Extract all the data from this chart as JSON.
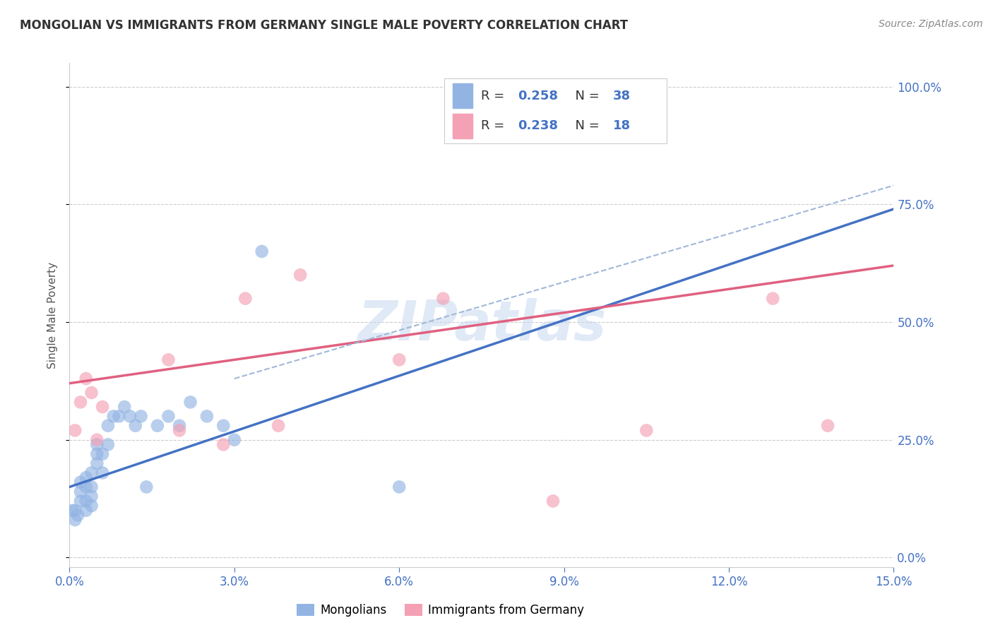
{
  "title": "MONGOLIAN VS IMMIGRANTS FROM GERMANY SINGLE MALE POVERTY CORRELATION CHART",
  "source": "Source: ZipAtlas.com",
  "ylabel_label": "Single Male Poverty",
  "xlim": [
    0,
    0.15
  ],
  "ylim": [
    -0.02,
    1.05
  ],
  "yaxis_min": 0.0,
  "yaxis_max": 1.0,
  "xticks": [
    0.0,
    0.03,
    0.06,
    0.09,
    0.12,
    0.15
  ],
  "yticks": [
    0.0,
    0.25,
    0.5,
    0.75,
    1.0
  ],
  "mongolian_color": "#92b4e3",
  "german_color": "#f4a0b5",
  "mongolian_line_color": "#4472c4",
  "german_line_color": "#e06080",
  "dashed_color": "#a0b8d8",
  "legend_R_mongolian": "R = 0.258",
  "legend_N_mongolian": "N = 38",
  "legend_R_german": "R = 0.238",
  "legend_N_german": "N = 18",
  "watermark": "ZIPatlas",
  "mongolian_scatter_x": [
    0.0005,
    0.001,
    0.001,
    0.0015,
    0.002,
    0.002,
    0.002,
    0.003,
    0.003,
    0.003,
    0.003,
    0.004,
    0.004,
    0.004,
    0.004,
    0.005,
    0.005,
    0.005,
    0.006,
    0.006,
    0.007,
    0.007,
    0.008,
    0.009,
    0.01,
    0.011,
    0.012,
    0.013,
    0.014,
    0.016,
    0.018,
    0.02,
    0.022,
    0.025,
    0.028,
    0.03,
    0.06,
    0.035
  ],
  "mongolian_scatter_y": [
    0.1,
    0.08,
    0.1,
    0.09,
    0.12,
    0.14,
    0.16,
    0.1,
    0.12,
    0.15,
    0.17,
    0.11,
    0.13,
    0.15,
    0.18,
    0.2,
    0.22,
    0.24,
    0.18,
    0.22,
    0.24,
    0.28,
    0.3,
    0.3,
    0.32,
    0.3,
    0.28,
    0.3,
    0.15,
    0.28,
    0.3,
    0.28,
    0.33,
    0.3,
    0.28,
    0.25,
    0.15,
    0.65
  ],
  "german_scatter_x": [
    0.001,
    0.002,
    0.003,
    0.004,
    0.005,
    0.006,
    0.018,
    0.02,
    0.028,
    0.032,
    0.038,
    0.042,
    0.06,
    0.068,
    0.088,
    0.105,
    0.128,
    0.138
  ],
  "german_scatter_y": [
    0.27,
    0.33,
    0.38,
    0.35,
    0.25,
    0.32,
    0.42,
    0.27,
    0.24,
    0.55,
    0.28,
    0.6,
    0.42,
    0.55,
    0.12,
    0.27,
    0.55,
    0.28
  ],
  "mongolian_trend_x0": 0.0,
  "mongolian_trend_y0": 0.15,
  "mongolian_trend_x1": 0.15,
  "mongolian_trend_y1": 0.74,
  "german_trend_x0": 0.0,
  "german_trend_y0": 0.37,
  "german_trend_x1": 0.15,
  "german_trend_y1": 0.62,
  "dashed_line_x0": 0.03,
  "dashed_line_y0": 0.38,
  "dashed_line_x1": 0.15,
  "dashed_line_y1": 0.79,
  "right_tick_color": "#4472c4",
  "grid_color": "#cccccc",
  "watermark_color": "#c8d8f0"
}
